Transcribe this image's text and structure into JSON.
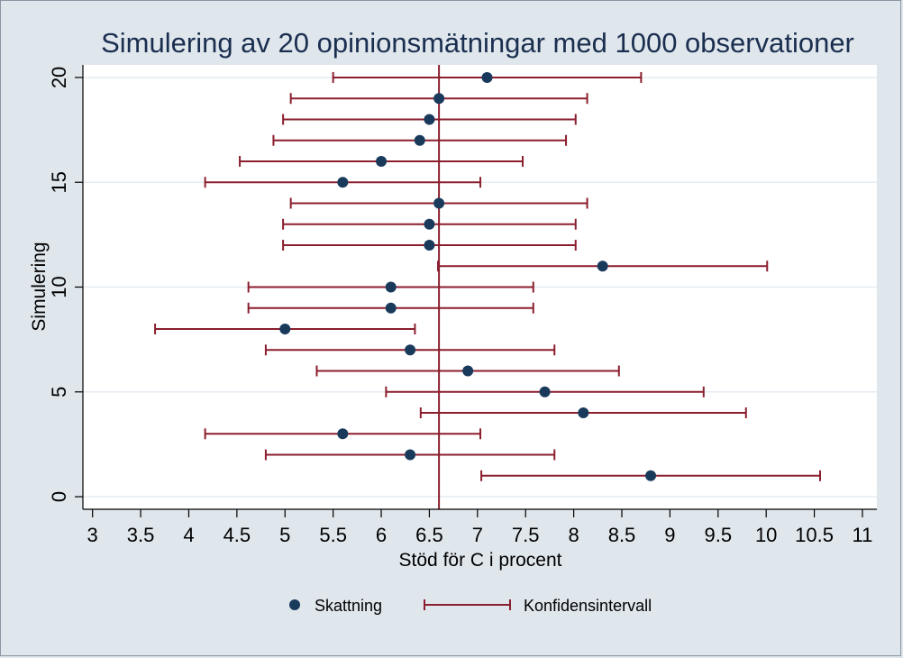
{
  "chart_data": {
    "type": "scatter",
    "title": "Simulering av 20 opinionsmätningar med 1000 observationer",
    "xlabel": "Stöd för C i procent",
    "ylabel": "Simulering",
    "xlim": [
      2.9,
      11.15
    ],
    "ylim": [
      -0.6,
      20.6
    ],
    "xticks": [
      "3",
      "3.5",
      "4",
      "4.5",
      "5",
      "5.5",
      "6",
      "6.5",
      "7",
      "7.5",
      "8",
      "8.5",
      "9",
      "9.5",
      "10",
      "10.5",
      "11"
    ],
    "yticks": [
      "0",
      "5",
      "10",
      "15",
      "20"
    ],
    "reference_line_x": 6.6,
    "grid": "horizontal",
    "legend": {
      "position": "bottom",
      "items": [
        "Skattning",
        "Konfidensintervall"
      ]
    },
    "series": [
      {
        "name": "Skattning",
        "points": [
          {
            "y": 1,
            "x": 8.8
          },
          {
            "y": 2,
            "x": 6.3
          },
          {
            "y": 3,
            "x": 5.6
          },
          {
            "y": 4,
            "x": 8.1
          },
          {
            "y": 5,
            "x": 7.7
          },
          {
            "y": 6,
            "x": 6.9
          },
          {
            "y": 7,
            "x": 6.3
          },
          {
            "y": 8,
            "x": 5.0
          },
          {
            "y": 9,
            "x": 6.1
          },
          {
            "y": 10,
            "x": 6.1
          },
          {
            "y": 11,
            "x": 8.3
          },
          {
            "y": 12,
            "x": 6.5
          },
          {
            "y": 13,
            "x": 6.5
          },
          {
            "y": 14,
            "x": 6.6
          },
          {
            "y": 15,
            "x": 5.6
          },
          {
            "y": 16,
            "x": 6.0
          },
          {
            "y": 17,
            "x": 6.4
          },
          {
            "y": 18,
            "x": 6.5
          },
          {
            "y": 19,
            "x": 6.6
          },
          {
            "y": 20,
            "x": 7.1
          }
        ]
      },
      {
        "name": "Konfidensintervall",
        "intervals": [
          {
            "y": 1,
            "low": 7.04,
            "high": 10.56
          },
          {
            "y": 2,
            "low": 4.8,
            "high": 7.8
          },
          {
            "y": 3,
            "low": 4.17,
            "high": 7.03
          },
          {
            "y": 4,
            "low": 6.41,
            "high": 9.79
          },
          {
            "y": 5,
            "low": 6.05,
            "high": 9.35
          },
          {
            "y": 6,
            "low": 5.33,
            "high": 8.47
          },
          {
            "y": 7,
            "low": 4.8,
            "high": 7.8
          },
          {
            "y": 8,
            "low": 3.65,
            "high": 6.35
          },
          {
            "y": 9,
            "low": 4.62,
            "high": 7.58
          },
          {
            "y": 10,
            "low": 4.62,
            "high": 7.58
          },
          {
            "y": 11,
            "low": 6.59,
            "high": 10.01
          },
          {
            "y": 12,
            "low": 4.98,
            "high": 8.02
          },
          {
            "y": 13,
            "low": 4.98,
            "high": 8.02
          },
          {
            "y": 14,
            "low": 5.06,
            "high": 8.14
          },
          {
            "y": 15,
            "low": 4.17,
            "high": 7.03
          },
          {
            "y": 16,
            "low": 4.53,
            "high": 7.47
          },
          {
            "y": 17,
            "low": 4.88,
            "high": 7.92
          },
          {
            "y": 18,
            "low": 4.98,
            "high": 8.02
          },
          {
            "y": 19,
            "low": 5.06,
            "high": 8.14
          },
          {
            "y": 20,
            "low": 5.5,
            "high": 8.7
          }
        ]
      }
    ],
    "colors": {
      "marker": "#1a3a5c",
      "interval": "#8b1e2e",
      "reference_line": "#8b1e2e",
      "grid": "#e4ebf1",
      "title": "#1a2e4f",
      "outer_background": "#dfe6ec",
      "plot_background": "#ffffff"
    }
  }
}
